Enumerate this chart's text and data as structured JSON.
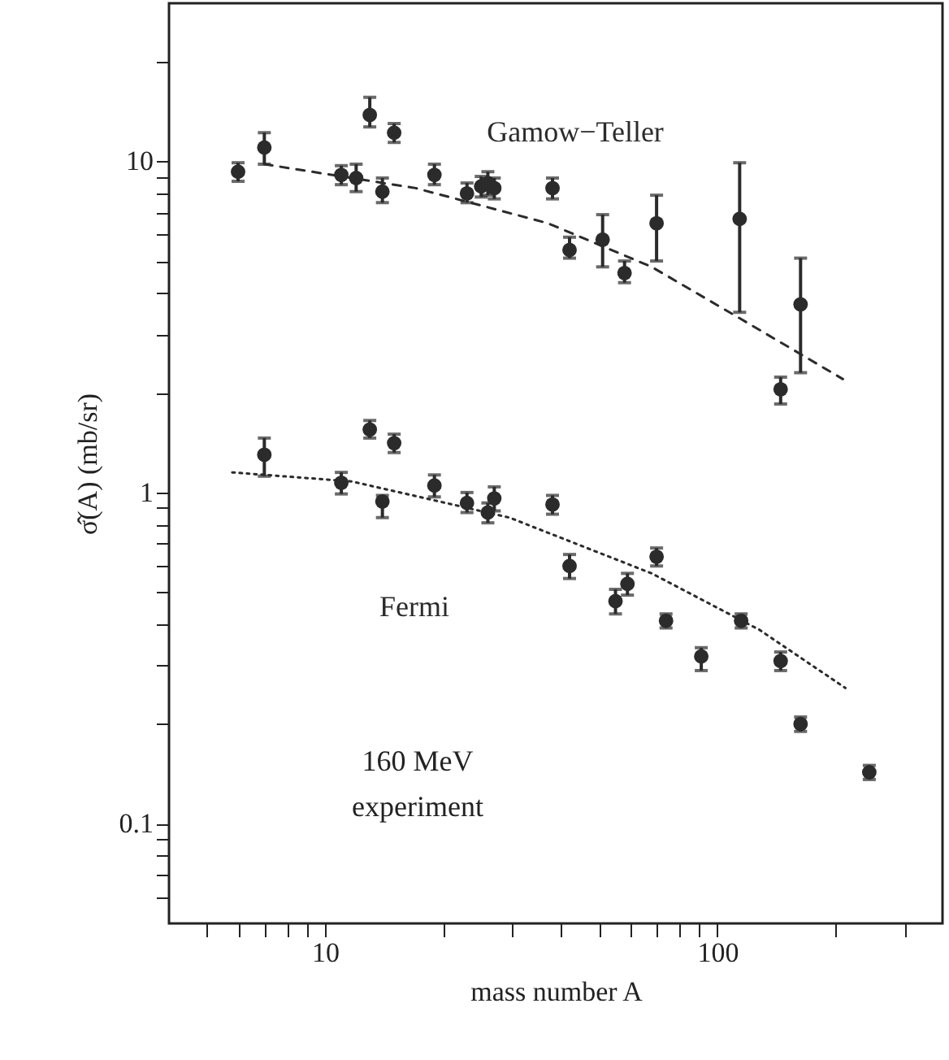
{
  "chart_data": {
    "type": "scatter",
    "xlabel": "mass number A",
    "ylabel": "σ̂(A) (mb/sr)",
    "log": "xy",
    "grid": false,
    "xlim": [
      4,
      375
    ],
    "ylim": [
      0.05,
      30
    ],
    "xticks": [
      {
        "value": 5,
        "label": null
      },
      {
        "value": 6,
        "label": null
      },
      {
        "value": 7,
        "label": null
      },
      {
        "value": 8,
        "label": null
      },
      {
        "value": 9,
        "label": null
      },
      10,
      {
        "value": 20,
        "label": null
      },
      {
        "value": 30,
        "label": null
      },
      {
        "value": 40,
        "label": null
      },
      {
        "value": 50,
        "label": null
      },
      {
        "value": 60,
        "label": null
      },
      {
        "value": 70,
        "label": null
      },
      {
        "value": 80,
        "label": null
      },
      {
        "value": 90,
        "label": null
      },
      100,
      {
        "value": 200,
        "label": null
      },
      {
        "value": 300,
        "label": null
      }
    ],
    "yticks": [
      {
        "value": 0.06,
        "label": null
      },
      {
        "value": 0.07,
        "label": null
      },
      {
        "value": 0.08,
        "label": null
      },
      {
        "value": 0.09,
        "label": null
      },
      0.1,
      {
        "value": 0.2,
        "label": null
      },
      {
        "value": 0.3,
        "label": null
      },
      {
        "value": 0.4,
        "label": null
      },
      {
        "value": 0.5,
        "label": null
      },
      {
        "value": 0.6,
        "label": null
      },
      {
        "value": 0.7,
        "label": null
      },
      {
        "value": 0.8,
        "label": null
      },
      {
        "value": 0.9,
        "label": null
      },
      1,
      {
        "value": 2,
        "label": null
      },
      {
        "value": 3,
        "label": null
      },
      {
        "value": 4,
        "label": null
      },
      {
        "value": 5,
        "label": null
      },
      {
        "value": 6,
        "label": null
      },
      {
        "value": 7,
        "label": null
      },
      {
        "value": 8,
        "label": null
      },
      {
        "value": 9,
        "label": null
      },
      10,
      {
        "value": 20,
        "label": null
      }
    ],
    "annotations": [
      "160 MeV\nexperiment"
    ],
    "series": [
      {
        "name": "Gamow−Teller",
        "type": "scatter",
        "marker": "circle",
        "color": "#2b2b2b",
        "x": [
          6,
          7,
          11,
          12,
          13,
          14,
          15,
          19,
          23,
          25,
          26,
          27,
          38,
          42,
          51,
          58,
          70,
          114,
          145,
          163
        ],
        "values": [
          9.3,
          11.0,
          9.1,
          8.9,
          13.8,
          8.1,
          12.2,
          9.1,
          8.0,
          8.4,
          8.6,
          8.3,
          8.3,
          5.4,
          5.8,
          4.6,
          6.5,
          6.7,
          2.05,
          3.7
        ],
        "errors": [
          [
            8.7,
            9.9
          ],
          [
            9.8,
            12.2
          ],
          [
            8.5,
            9.7
          ],
          [
            8.1,
            9.8
          ],
          [
            12.7,
            15.6
          ],
          [
            7.5,
            8.9
          ],
          [
            11.4,
            13.0
          ],
          [
            8.5,
            9.8
          ],
          [
            7.5,
            8.6
          ],
          [
            7.8,
            9.0
          ],
          [
            7.9,
            9.3
          ],
          [
            7.7,
            8.9
          ],
          [
            7.7,
            8.9
          ],
          [
            5.1,
            5.9
          ],
          [
            4.8,
            6.9
          ],
          [
            4.3,
            5.0
          ],
          [
            5.0,
            7.9
          ],
          [
            3.5,
            9.9
          ],
          [
            1.85,
            2.23
          ],
          [
            2.3,
            5.1
          ]
        ]
      },
      {
        "type": "line",
        "marker": "none",
        "color": "#2b2b2b",
        "line_style": "dashed",
        "x": [
          7,
          17,
          37,
          68,
          112,
          209
        ],
        "values": [
          9.8,
          8.3,
          6.5,
          4.8,
          3.4,
          2.2
        ]
      },
      {
        "name": "Fermi",
        "type": "scatter",
        "marker": "circle",
        "color": "#2b2b2b",
        "x": [
          7,
          11,
          13,
          14,
          15,
          19,
          23,
          26,
          27,
          38,
          42,
          55,
          59,
          70,
          74,
          91,
          115,
          145,
          163,
          244
        ],
        "values": [
          1.3,
          1.07,
          1.55,
          0.94,
          1.41,
          1.05,
          0.93,
          0.87,
          0.96,
          0.92,
          0.6,
          0.47,
          0.53,
          0.64,
          0.41,
          0.32,
          0.41,
          0.31,
          0.2,
          0.143
        ],
        "errors": [
          [
            1.12,
            1.46
          ],
          [
            0.99,
            1.15
          ],
          [
            1.46,
            1.65
          ],
          [
            0.84,
            0.98
          ],
          [
            1.32,
            1.5
          ],
          [
            0.97,
            1.13
          ],
          [
            0.87,
            1.0
          ],
          [
            0.81,
            0.93
          ],
          [
            0.88,
            1.04
          ],
          [
            0.86,
            0.98
          ],
          [
            0.55,
            0.65
          ],
          [
            0.43,
            0.51
          ],
          [
            0.49,
            0.57
          ],
          [
            0.6,
            0.68
          ],
          [
            0.39,
            0.43
          ],
          [
            0.29,
            0.34
          ],
          [
            0.39,
            0.43
          ],
          [
            0.29,
            0.33
          ],
          [
            0.19,
            0.21
          ],
          [
            0.136,
            0.15
          ]
        ]
      },
      {
        "type": "line",
        "marker": "none",
        "color": "#2b2b2b",
        "line_style": "dotted",
        "x": [
          5.8,
          11.7,
          29.5,
          68,
          128,
          212
        ],
        "values": [
          1.15,
          1.08,
          0.84,
          0.57,
          0.385,
          0.257
        ]
      }
    ]
  }
}
